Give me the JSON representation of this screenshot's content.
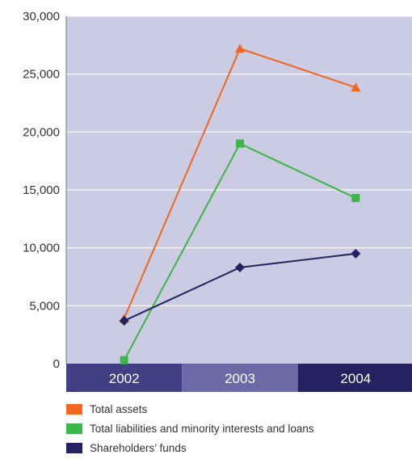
{
  "chart_data": {
    "type": "line",
    "categories": [
      "2002",
      "2003",
      "2004"
    ],
    "series": [
      {
        "name": "Total assets",
        "values": [
          3900,
          27200,
          23850
        ],
        "color": "#f26522",
        "marker": "triangle"
      },
      {
        "name": "Total liabilities and minority interests and loans",
        "values": [
          300,
          19000,
          14300
        ],
        "color": "#3cb54a",
        "marker": "square"
      },
      {
        "name": "Shareholders’ funds",
        "values": [
          3700,
          8300,
          9500
        ],
        "color": "#262262",
        "marker": "diamond"
      }
    ],
    "y_ticks": [
      "0",
      "5,000",
      "10,000",
      "15,000",
      "20,000",
      "25,000",
      "30,000"
    ],
    "ylim": [
      0,
      30000
    ],
    "grid": true,
    "legend_position": "bottom-left",
    "title": "",
    "xlabel": "",
    "ylabel": "",
    "colors": {
      "plot_background": "#cbcbe3",
      "category_bands": [
        "#433f85",
        "#6d69a6",
        "#262262"
      ]
    }
  }
}
